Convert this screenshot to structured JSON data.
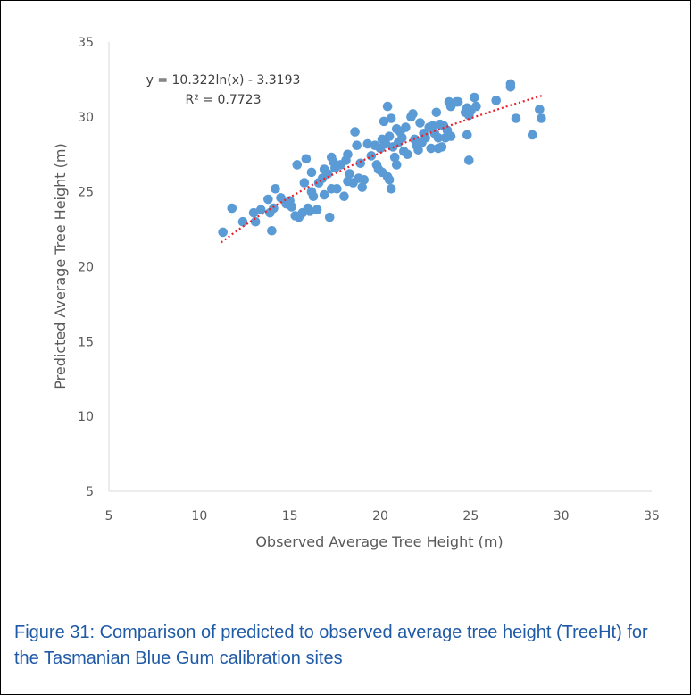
{
  "caption": "Figure 31: Comparison of predicted to observed average tree height (TreeHt) for the Tasmanian Blue Gum calibration sites",
  "colors": {
    "points": "#5b9bd5",
    "trendline": "#e8202a",
    "axis": "#d9d9d9",
    "tick_text": "#595959",
    "caption": "#1f5aa6"
  },
  "chart_data": {
    "type": "scatter",
    "xlabel": "Observed Average Tree Height (m)",
    "ylabel": "Predicted Average Tree Height (m)",
    "xlim": [
      5,
      35
    ],
    "ylim": [
      5,
      35
    ],
    "xticks": [
      5,
      10,
      15,
      20,
      25,
      30,
      35
    ],
    "yticks": [
      5,
      10,
      15,
      20,
      25,
      30,
      35
    ],
    "grid": false,
    "trendline": {
      "type": "logarithmic",
      "a": 10.322,
      "b": -3.3193,
      "x_range": [
        11.2,
        29
      ],
      "equation": "y = 10.322ln(x) - 3.3193",
      "r_squared": "R² = 0.7723"
    },
    "points": [
      [
        11.3,
        22.3
      ],
      [
        11.8,
        23.9
      ],
      [
        12.4,
        23.0
      ],
      [
        13.0,
        23.6
      ],
      [
        13.1,
        23.0
      ],
      [
        13.4,
        23.8
      ],
      [
        13.8,
        24.5
      ],
      [
        13.9,
        23.6
      ],
      [
        14.0,
        22.4
      ],
      [
        14.2,
        25.2
      ],
      [
        14.1,
        23.9
      ],
      [
        14.5,
        24.6
      ],
      [
        14.8,
        24.2
      ],
      [
        15.0,
        24.4
      ],
      [
        15.1,
        24.0
      ],
      [
        15.3,
        23.4
      ],
      [
        15.4,
        26.8
      ],
      [
        15.5,
        23.3
      ],
      [
        15.7,
        23.6
      ],
      [
        15.8,
        25.6
      ],
      [
        15.9,
        27.2
      ],
      [
        16.0,
        23.9
      ],
      [
        16.1,
        23.7
      ],
      [
        16.2,
        26.3
      ],
      [
        16.2,
        25.0
      ],
      [
        16.3,
        24.7
      ],
      [
        16.5,
        23.8
      ],
      [
        16.6,
        25.6
      ],
      [
        16.8,
        25.9
      ],
      [
        16.9,
        26.5
      ],
      [
        16.9,
        24.8
      ],
      [
        17.1,
        26.2
      ],
      [
        17.2,
        23.3
      ],
      [
        17.3,
        27.3
      ],
      [
        17.3,
        25.2
      ],
      [
        17.4,
        27.0
      ],
      [
        17.5,
        26.6
      ],
      [
        17.6,
        25.2
      ],
      [
        17.8,
        26.8
      ],
      [
        18.0,
        24.7
      ],
      [
        18.1,
        27.1
      ],
      [
        18.2,
        27.5
      ],
      [
        18.3,
        26.2
      ],
      [
        18.2,
        25.7
      ],
      [
        18.5,
        25.6
      ],
      [
        18.6,
        29.0
      ],
      [
        18.7,
        28.1
      ],
      [
        18.8,
        25.9
      ],
      [
        18.9,
        26.9
      ],
      [
        19.0,
        25.3
      ],
      [
        19.1,
        25.8
      ],
      [
        19.3,
        28.2
      ],
      [
        19.5,
        27.4
      ],
      [
        19.7,
        28.1
      ],
      [
        19.8,
        26.8
      ],
      [
        19.9,
        26.5
      ],
      [
        20.0,
        27.9
      ],
      [
        20.1,
        28.5
      ],
      [
        20.1,
        26.3
      ],
      [
        20.2,
        29.7
      ],
      [
        20.3,
        28.2
      ],
      [
        20.4,
        26.0
      ],
      [
        20.4,
        30.7
      ],
      [
        20.5,
        25.8
      ],
      [
        20.5,
        28.7
      ],
      [
        20.6,
        29.9
      ],
      [
        20.6,
        25.2
      ],
      [
        20.7,
        28.0
      ],
      [
        20.8,
        27.3
      ],
      [
        20.9,
        29.2
      ],
      [
        20.9,
        26.8
      ],
      [
        21.0,
        28.3
      ],
      [
        21.1,
        29.0
      ],
      [
        21.2,
        28.6
      ],
      [
        21.3,
        27.7
      ],
      [
        21.4,
        29.3
      ],
      [
        21.5,
        27.5
      ],
      [
        21.7,
        30.0
      ],
      [
        21.8,
        30.2
      ],
      [
        21.9,
        28.5
      ],
      [
        22.0,
        28.1
      ],
      [
        22.1,
        27.8
      ],
      [
        22.2,
        29.6
      ],
      [
        22.3,
        28.3
      ],
      [
        22.4,
        28.9
      ],
      [
        22.5,
        28.6
      ],
      [
        22.7,
        29.3
      ],
      [
        22.8,
        27.9
      ],
      [
        22.9,
        29.4
      ],
      [
        23.0,
        28.9
      ],
      [
        23.1,
        30.3
      ],
      [
        23.2,
        27.9
      ],
      [
        23.2,
        28.6
      ],
      [
        23.3,
        29.5
      ],
      [
        23.4,
        28.0
      ],
      [
        23.5,
        29.4
      ],
      [
        23.6,
        28.6
      ],
      [
        23.7,
        29.1
      ],
      [
        23.8,
        31.0
      ],
      [
        23.9,
        30.7
      ],
      [
        23.9,
        28.7
      ],
      [
        24.2,
        31.0
      ],
      [
        24.3,
        31.0
      ],
      [
        24.7,
        30.3
      ],
      [
        24.8,
        30.6
      ],
      [
        24.8,
        28.8
      ],
      [
        24.9,
        27.1
      ],
      [
        24.9,
        30.1
      ],
      [
        25.0,
        30.4
      ],
      [
        25.2,
        31.3
      ],
      [
        25.3,
        30.7
      ],
      [
        26.4,
        31.1
      ],
      [
        27.2,
        32.0
      ],
      [
        27.2,
        32.2
      ],
      [
        27.5,
        29.9
      ],
      [
        28.4,
        28.8
      ],
      [
        28.8,
        30.5
      ],
      [
        28.9,
        29.9
      ]
    ]
  }
}
